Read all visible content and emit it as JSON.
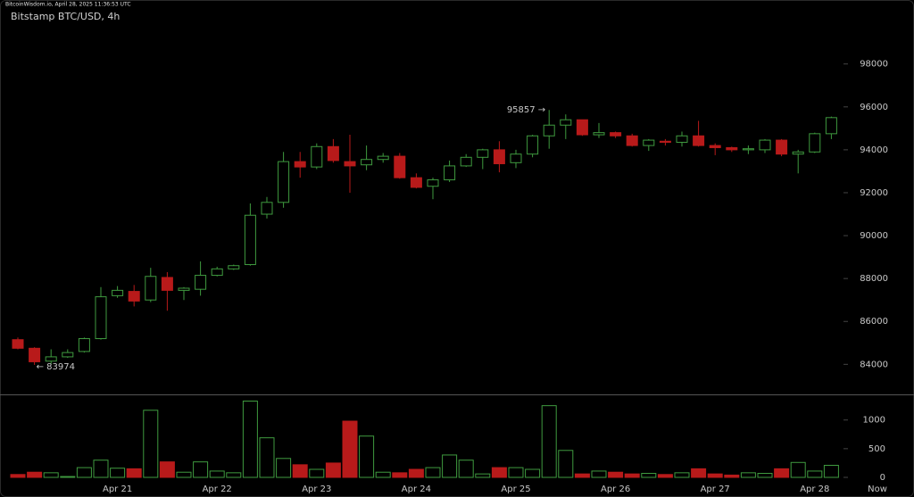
{
  "header": {
    "source": "BitcoinWisdom.io, April 28, 2025 11:36:53 UTC"
  },
  "chart_data": {
    "type": "candlestick",
    "title": "Bitstamp BTC/USD, 4h",
    "categories": [
      null,
      null,
      null,
      null,
      null,
      null,
      "Apr 21",
      null,
      null,
      null,
      null,
      null,
      "Apr 22",
      null,
      null,
      null,
      null,
      null,
      "Apr 23",
      null,
      null,
      null,
      null,
      null,
      "Apr 24",
      null,
      null,
      null,
      null,
      null,
      "Apr 25",
      null,
      null,
      null,
      null,
      null,
      "Apr 26",
      null,
      null,
      null,
      null,
      null,
      "Apr 27",
      null,
      null,
      null,
      null,
      null,
      "Apr 28",
      null
    ],
    "x_end_label": "Now",
    "open": [
      85150,
      84750,
      84150,
      84350,
      84600,
      85200,
      87200,
      87400,
      87000,
      88050,
      87450,
      87500,
      88150,
      88450,
      88650,
      91000,
      91550,
      93450,
      93200,
      94150,
      93450,
      93300,
      93550,
      93700,
      92700,
      92300,
      92600,
      93250,
      93650,
      94000,
      93400,
      93800,
      94650,
      95150,
      95400,
      94700,
      94800,
      94650,
      94200,
      94400,
      94350,
      94650,
      94200,
      94100,
      94000,
      94000,
      94450,
      93800,
      93900,
      94750
    ],
    "high": [
      85250,
      84800,
      84700,
      84700,
      85250,
      87600,
      87650,
      87700,
      88500,
      88300,
      87600,
      88800,
      88550,
      88650,
      91500,
      91800,
      93900,
      93900,
      94300,
      94500,
      94700,
      94200,
      93850,
      93850,
      92900,
      92700,
      93500,
      93800,
      94050,
      94400,
      94000,
      94700,
      95857,
      95650,
      95400,
      95250,
      94850,
      94750,
      94500,
      94500,
      94850,
      95350,
      94300,
      94150,
      94200,
      94500,
      94500,
      94000,
      94800,
      95550
    ],
    "low": [
      84700,
      83974,
      84000,
      84300,
      84550,
      85150,
      87100,
      86700,
      86900,
      86500,
      87000,
      87200,
      88100,
      88400,
      88600,
      90800,
      91300,
      92700,
      93100,
      93400,
      92000,
      93050,
      93400,
      92650,
      92200,
      91700,
      92500,
      93200,
      93100,
      92950,
      93150,
      93650,
      94050,
      94500,
      94650,
      94550,
      94550,
      94150,
      93950,
      94200,
      94150,
      94150,
      93750,
      93900,
      93800,
      93850,
      93700,
      92900,
      93850,
      94500
    ],
    "close": [
      84750,
      84120,
      84350,
      84550,
      85200,
      87150,
      87450,
      86950,
      88100,
      87450,
      87550,
      88150,
      88450,
      88600,
      90950,
      91550,
      93450,
      93200,
      94150,
      93500,
      93250,
      93550,
      93700,
      92700,
      92250,
      92600,
      93250,
      93650,
      94000,
      93350,
      93800,
      94650,
      95150,
      95400,
      94700,
      94800,
      94650,
      94200,
      94450,
      94350,
      94650,
      94200,
      94100,
      94000,
      94050,
      94450,
      93800,
      93900,
      94750,
      95500
    ],
    "high_label": "95857 →",
    "low_label": "← 83974",
    "up_color": "#3f9a3f",
    "down_color": "#b81a1a",
    "ylim": [
      82600,
      100400
    ],
    "yticks": [
      84000,
      86000,
      88000,
      90000,
      92000,
      94000,
      96000,
      98000
    ],
    "volume": {
      "values": [
        50,
        90,
        80,
        15,
        170,
        300,
        160,
        150,
        1170,
        270,
        90,
        270,
        110,
        80,
        1330,
        690,
        330,
        220,
        140,
        250,
        980,
        720,
        90,
        80,
        140,
        170,
        390,
        300,
        60,
        170,
        170,
        140,
        1250,
        470,
        60,
        110,
        90,
        60,
        70,
        50,
        80,
        150,
        60,
        40,
        80,
        70,
        150,
        260,
        110,
        210
      ],
      "ylim": [
        0,
        1400
      ],
      "yticks": [
        0,
        500,
        1000
      ]
    }
  }
}
